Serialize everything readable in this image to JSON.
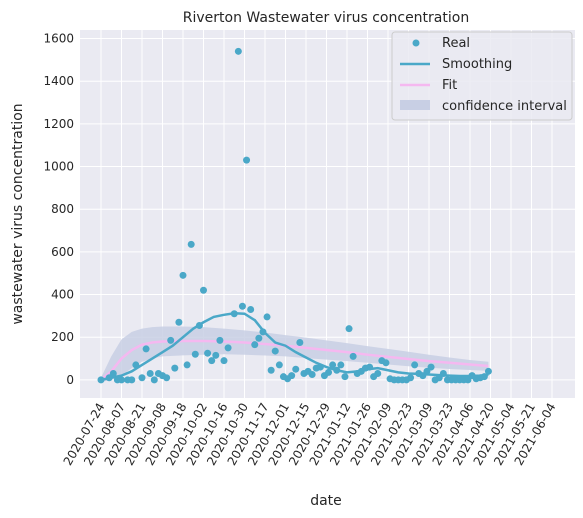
{
  "chart_data": {
    "type": "scatter",
    "title": "Riverton Wastewater virus concentration",
    "xlabel": "date",
    "ylabel": "wastewater virus concentration",
    "x_ticks": [
      "2020-07-24",
      "2020-08-07",
      "2020-08-21",
      "2020-09-08",
      "2020-09-18",
      "2020-10-02",
      "2020-10-16",
      "2020-10-30",
      "2020-11-17",
      "2020-12-01",
      "2020-12-15",
      "2020-12-29",
      "2021-01-12",
      "2021-01-26",
      "2021-02-09",
      "2021-02-23",
      "2021-03-09",
      "2021-03-23",
      "2021-04-06",
      "2021-04-20",
      "2021-05-04",
      "2021-05-21",
      "2021-06-04"
    ],
    "y_ticks": [
      0,
      200,
      400,
      600,
      800,
      1000,
      1200,
      1400,
      1600
    ],
    "ylim": [
      -85,
      1640
    ],
    "grid": true,
    "legend_position": "top-right",
    "colors": {
      "real": "#4aa8c8",
      "smoothing": "#4aa8c8",
      "fit": "#f5b8f0",
      "ci": "#c8cfe4",
      "plot_bg": "#eaeaf2",
      "grid": "#ffffff"
    },
    "series": [
      {
        "name": "Real",
        "kind": "points",
        "points": [
          [
            0,
            0
          ],
          [
            0.4,
            10
          ],
          [
            0.6,
            30
          ],
          [
            0.8,
            0
          ],
          [
            1,
            0
          ],
          [
            1.3,
            0
          ],
          [
            1.5,
            0
          ],
          [
            1.7,
            70
          ],
          [
            2,
            10
          ],
          [
            2.2,
            145
          ],
          [
            2.4,
            30
          ],
          [
            2.6,
            0
          ],
          [
            2.8,
            30
          ],
          [
            3,
            20
          ],
          [
            3.2,
            10
          ],
          [
            3.4,
            185
          ],
          [
            3.6,
            55
          ],
          [
            3.8,
            270
          ],
          [
            4,
            490
          ],
          [
            4.2,
            70
          ],
          [
            4.4,
            635
          ],
          [
            4.6,
            120
          ],
          [
            4.8,
            255
          ],
          [
            5,
            420
          ],
          [
            5.2,
            125
          ],
          [
            5.4,
            90
          ],
          [
            5.6,
            115
          ],
          [
            5.8,
            185
          ],
          [
            6,
            90
          ],
          [
            6.2,
            150
          ],
          [
            6.5,
            310
          ],
          [
            6.7,
            1540
          ],
          [
            6.9,
            345
          ],
          [
            7.1,
            1030
          ],
          [
            7.3,
            330
          ],
          [
            7.5,
            165
          ],
          [
            7.7,
            195
          ],
          [
            7.9,
            225
          ],
          [
            8.1,
            295
          ],
          [
            8.3,
            45
          ],
          [
            8.5,
            135
          ],
          [
            8.7,
            70
          ],
          [
            8.9,
            15
          ],
          [
            9.1,
            5
          ],
          [
            9.3,
            20
          ],
          [
            9.5,
            50
          ],
          [
            9.7,
            175
          ],
          [
            9.9,
            30
          ],
          [
            10.1,
            40
          ],
          [
            10.3,
            25
          ],
          [
            10.5,
            55
          ],
          [
            10.7,
            60
          ],
          [
            10.9,
            20
          ],
          [
            11.1,
            35
          ],
          [
            11.3,
            70
          ],
          [
            11.5,
            45
          ],
          [
            11.7,
            70
          ],
          [
            11.9,
            15
          ],
          [
            12.1,
            240
          ],
          [
            12.3,
            110
          ],
          [
            12.5,
            30
          ],
          [
            12.7,
            40
          ],
          [
            12.9,
            55
          ],
          [
            13.1,
            60
          ],
          [
            13.3,
            15
          ],
          [
            13.5,
            30
          ],
          [
            13.7,
            90
          ],
          [
            13.9,
            80
          ],
          [
            14.1,
            5
          ],
          [
            14.3,
            0
          ],
          [
            14.5,
            0
          ],
          [
            14.7,
            0
          ],
          [
            14.9,
            0
          ],
          [
            15.1,
            10
          ],
          [
            15.3,
            70
          ],
          [
            15.5,
            30
          ],
          [
            15.7,
            20
          ],
          [
            15.9,
            40
          ],
          [
            16.1,
            60
          ],
          [
            16.3,
            0
          ],
          [
            16.5,
            10
          ],
          [
            16.7,
            30
          ],
          [
            16.9,
            0
          ],
          [
            17.1,
            0
          ],
          [
            17.3,
            0
          ],
          [
            17.5,
            0
          ],
          [
            17.7,
            0
          ],
          [
            17.9,
            0
          ],
          [
            18.1,
            20
          ],
          [
            18.3,
            5
          ],
          [
            18.5,
            10
          ],
          [
            18.7,
            15
          ],
          [
            18.9,
            40
          ]
        ]
      },
      {
        "name": "Smoothing",
        "kind": "line",
        "points": [
          [
            0,
            0
          ],
          [
            0.5,
            10
          ],
          [
            1,
            20
          ],
          [
            1.5,
            40
          ],
          [
            2,
            70
          ],
          [
            2.5,
            100
          ],
          [
            3,
            130
          ],
          [
            3.5,
            160
          ],
          [
            4,
            200
          ],
          [
            4.5,
            240
          ],
          [
            5,
            270
          ],
          [
            5.5,
            295
          ],
          [
            6,
            305
          ],
          [
            6.5,
            312
          ],
          [
            7,
            310
          ],
          [
            7.5,
            280
          ],
          [
            8,
            220
          ],
          [
            8.5,
            175
          ],
          [
            9,
            160
          ],
          [
            9.5,
            130
          ],
          [
            10,
            105
          ],
          [
            10.5,
            80
          ],
          [
            11,
            60
          ],
          [
            11.5,
            45
          ],
          [
            12,
            35
          ],
          [
            12.5,
            40
          ],
          [
            13,
            50
          ],
          [
            13.5,
            55
          ],
          [
            14,
            45
          ],
          [
            14.5,
            35
          ],
          [
            15,
            30
          ],
          [
            15.5,
            28
          ],
          [
            16,
            25
          ],
          [
            16.5,
            22
          ],
          [
            17,
            20
          ],
          [
            17.5,
            18
          ],
          [
            18,
            18
          ],
          [
            18.5,
            20
          ],
          [
            18.9,
            25
          ]
        ]
      },
      {
        "name": "Fit",
        "kind": "line",
        "points": [
          [
            0,
            0
          ],
          [
            0.5,
            40
          ],
          [
            1,
            100
          ],
          [
            1.5,
            140
          ],
          [
            2,
            165
          ],
          [
            2.5,
            175
          ],
          [
            3,
            180
          ],
          [
            4,
            182
          ],
          [
            5,
            182
          ],
          [
            6,
            180
          ],
          [
            7,
            175
          ],
          [
            8,
            168
          ],
          [
            9,
            160
          ],
          [
            10,
            150
          ],
          [
            11,
            140
          ],
          [
            12,
            130
          ],
          [
            13,
            118
          ],
          [
            14,
            108
          ],
          [
            15,
            98
          ],
          [
            16,
            88
          ],
          [
            17,
            80
          ],
          [
            18,
            72
          ],
          [
            18.9,
            65
          ]
        ]
      },
      {
        "name": "confidence interval",
        "kind": "band",
        "upper": [
          [
            0,
            10
          ],
          [
            0.5,
            110
          ],
          [
            1,
            190
          ],
          [
            1.5,
            225
          ],
          [
            2,
            240
          ],
          [
            2.5,
            247
          ],
          [
            3,
            250
          ],
          [
            4,
            250
          ],
          [
            5,
            247
          ],
          [
            6,
            240
          ],
          [
            7,
            232
          ],
          [
            8,
            222
          ],
          [
            9,
            210
          ],
          [
            10,
            198
          ],
          [
            11,
            185
          ],
          [
            12,
            172
          ],
          [
            13,
            158
          ],
          [
            14,
            145
          ],
          [
            15,
            132
          ],
          [
            16,
            118
          ],
          [
            17,
            105
          ],
          [
            18,
            93
          ],
          [
            18.9,
            85
          ]
        ],
        "lower": [
          [
            0,
            -10
          ],
          [
            0.5,
            0
          ],
          [
            1,
            20
          ],
          [
            1.5,
            55
          ],
          [
            2,
            85
          ],
          [
            2.5,
            100
          ],
          [
            3,
            110
          ],
          [
            4,
            115
          ],
          [
            5,
            118
          ],
          [
            6,
            120
          ],
          [
            7,
            118
          ],
          [
            8,
            114
          ],
          [
            9,
            110
          ],
          [
            10,
            102
          ],
          [
            11,
            95
          ],
          [
            12,
            88
          ],
          [
            13,
            80
          ],
          [
            14,
            72
          ],
          [
            15,
            64
          ],
          [
            16,
            57
          ],
          [
            17,
            51
          ],
          [
            18,
            46
          ],
          [
            18.9,
            42
          ]
        ]
      }
    ]
  }
}
